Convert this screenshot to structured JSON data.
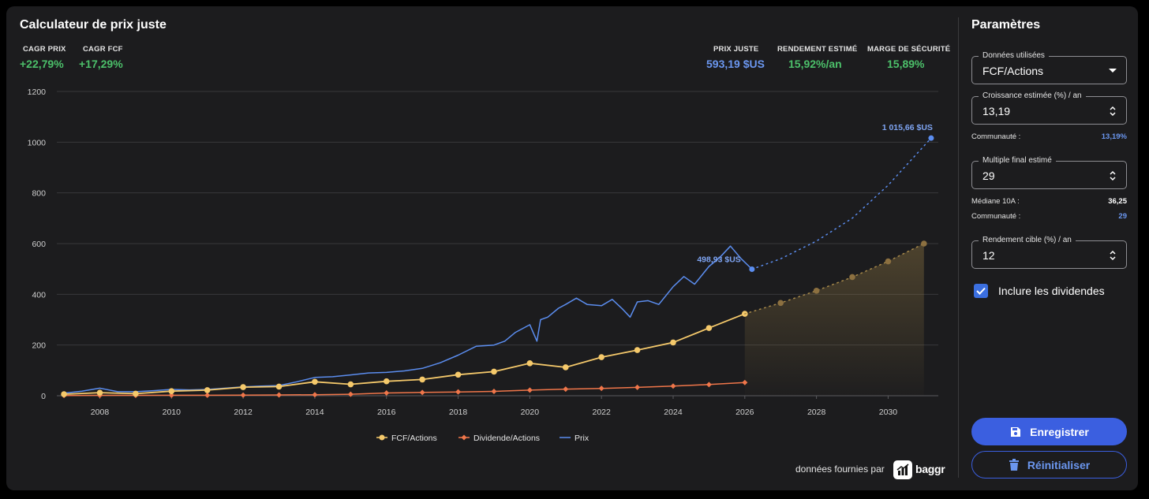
{
  "header": {
    "title": "Calculateur de prix juste",
    "cagr_prix_label": "CAGR PRIX",
    "cagr_prix_value": "+22,79%",
    "cagr_fcf_label": "CAGR FCF",
    "cagr_fcf_value": "+17,29%",
    "prix_juste_label": "PRIX JUSTE",
    "prix_juste_value": "593,19 $US",
    "rendement_label": "RENDEMENT ESTIMÉ",
    "rendement_value": "15,92%/an",
    "marge_label": "MARGE DE SÉCURITÉ",
    "marge_value": "15,89%"
  },
  "chart_data": {
    "type": "line",
    "ylim": [
      0,
      1200
    ],
    "xlim": [
      2006.8,
      2031.4
    ],
    "y_ticks": [
      "0",
      "200",
      "400",
      "600",
      "800",
      "1000",
      "1200"
    ],
    "x_ticks": [
      "2008",
      "2010",
      "2012",
      "2014",
      "2016",
      "2018",
      "2020",
      "2022",
      "2024",
      "2026",
      "2028",
      "2030"
    ],
    "series": [
      {
        "name": "FCF/Actions",
        "color": "#f5c96b",
        "x": [
          2007,
          2008,
          2009,
          2010,
          2011,
          2012,
          2013,
          2014,
          2015,
          2016,
          2017,
          2018,
          2019,
          2020,
          2021,
          2022,
          2023,
          2024,
          2025,
          2026
        ],
        "values": [
          6,
          12,
          8,
          18,
          22,
          34,
          36,
          55,
          45,
          57,
          64,
          83,
          95,
          128,
          112,
          152,
          180,
          210,
          267,
          323
        ]
      },
      {
        "name": "FCF/Actions (projection)",
        "color": "#f5c96b",
        "x": [
          2026,
          2027,
          2028,
          2029,
          2030,
          2031
        ],
        "values": [
          323,
          366,
          414,
          468,
          530,
          600
        ]
      },
      {
        "name": "Dividende/Actions",
        "color": "#f0764a",
        "x": [
          2007,
          2008,
          2009,
          2010,
          2011,
          2012,
          2013,
          2014,
          2015,
          2016,
          2017,
          2018,
          2019,
          2020,
          2021,
          2022,
          2023,
          2024,
          2025,
          2026
        ],
        "values": [
          1,
          1.5,
          1.5,
          2,
          2,
          2.5,
          3,
          4,
          6,
          11,
          13,
          15,
          17,
          22,
          26,
          29,
          33,
          38,
          44,
          52
        ]
      },
      {
        "name": "Prix",
        "color": "#5b8def",
        "x": [
          2007,
          2007.5,
          2008,
          2008.5,
          2009,
          2009.5,
          2010,
          2010.5,
          2011,
          2011.5,
          2012,
          2012.5,
          2013,
          2013.5,
          2014,
          2014.5,
          2015,
          2015.5,
          2016,
          2016.5,
          2017,
          2017.5,
          2018,
          2018.5,
          2019,
          2019.3,
          2019.6,
          2020,
          2020.2,
          2020.3,
          2020.5,
          2020.8,
          2021,
          2021.3,
          2021.6,
          2022,
          2022.3,
          2022.6,
          2022.8,
          2023,
          2023.3,
          2023.6,
          2024,
          2024.3,
          2024.6,
          2025,
          2025.3,
          2025.6,
          2025.9,
          2026.2
        ],
        "values": [
          10,
          18,
          30,
          16,
          16,
          20,
          25,
          23,
          25,
          30,
          35,
          38,
          40,
          55,
          72,
          75,
          82,
          90,
          92,
          98,
          108,
          130,
          160,
          195,
          200,
          215,
          250,
          280,
          215,
          300,
          310,
          345,
          360,
          385,
          360,
          355,
          380,
          340,
          310,
          370,
          375,
          360,
          430,
          470,
          440,
          510,
          545,
          590,
          540,
          499
        ]
      },
      {
        "name": "Prix (projection)",
        "color": "#5b8def",
        "x": [
          2026.2,
          2027,
          2028,
          2029,
          2030,
          2031.2
        ],
        "values": [
          499,
          540,
          610,
          700,
          830,
          1016
        ]
      }
    ],
    "annotations": [
      {
        "text": "498,93 $US",
        "x": 2026.0,
        "y": 499
      },
      {
        "text": "1 015,66 $US",
        "x": 2031.2,
        "y": 1016
      }
    ],
    "legend": [
      "FCF/Actions",
      "Dividende/Actions",
      "Prix"
    ],
    "legend_position": "bottom-center",
    "grid": true
  },
  "footer": {
    "credit": "données fournies par",
    "logo_text": "baggr"
  },
  "sidebar": {
    "title": "Paramètres",
    "donnees_label": "Données utilisées",
    "donnees_value": "FCF/Actions",
    "croissance_label": "Croissance estimée (%) / an",
    "croissance_value": "13,19",
    "communaute1_label": "Communauté :",
    "communaute1_value": "13,19%",
    "multiple_label": "Multiple final estimé",
    "multiple_value": "29",
    "mediane_label": "Médiane 10A :",
    "mediane_value": "36,25",
    "communaute2_label": "Communauté :",
    "communaute2_value": "29",
    "rendement_cible_label": "Rendement cible (%) / an",
    "rendement_cible_value": "12",
    "dividendes_label": "Inclure les dividendes",
    "save_label": "Enregistrer",
    "reset_label": "Réinitialiser"
  },
  "colors": {
    "accent": "#3b5fe0",
    "green": "#4cc06a",
    "blue": "#6b97f0",
    "fcf": "#f5c96b",
    "dividend": "#f0764a",
    "price": "#5b8def"
  }
}
